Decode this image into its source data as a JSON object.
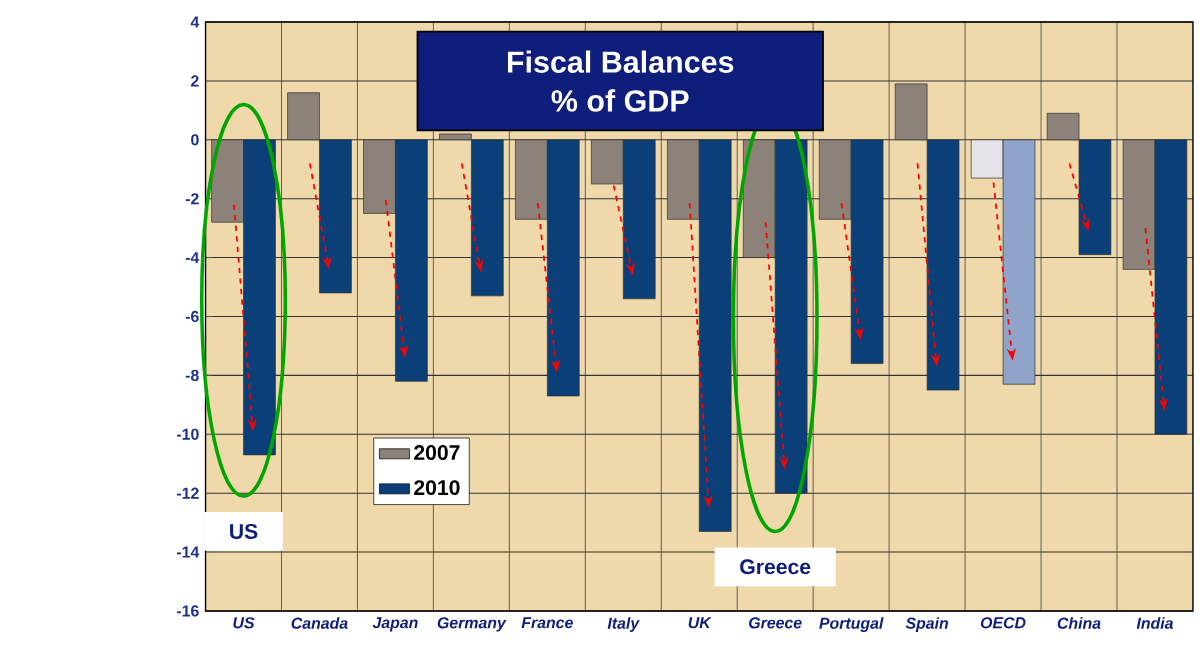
{
  "chart_data": {
    "type": "bar",
    "title": "Fiscal Balances",
    "subtitle": "% of GDP",
    "categories": [
      "US",
      "Canada",
      "Japan",
      "Germany",
      "France",
      "Italy",
      "UK",
      "Greece",
      "Portugal",
      "Spain",
      "OECD",
      "China",
      "India"
    ],
    "series": [
      {
        "name": "2007",
        "colors": [
          "#8c8279",
          "#8c8279",
          "#8c8279",
          "#8c8279",
          "#8c8279",
          "#8c8279",
          "#8c8279",
          "#8c8279",
          "#8c8279",
          "#8c8279",
          "#e4e4e8",
          "#8c8279",
          "#8c8279"
        ],
        "values": [
          -2.8,
          1.6,
          -2.5,
          0.2,
          -2.7,
          -1.5,
          -2.7,
          -4.0,
          -2.7,
          1.9,
          -1.3,
          0.9,
          -4.4
        ]
      },
      {
        "name": "2010",
        "colors": [
          "#0b3f78",
          "#0b3f78",
          "#0b3f78",
          "#0b3f78",
          "#0b3f78",
          "#0b3f78",
          "#0b3f78",
          "#0b3f78",
          "#0b3f78",
          "#0b3f78",
          "#8fa4c8",
          "#0b3f78",
          "#0b3f78"
        ],
        "values": [
          -10.7,
          -5.2,
          -8.2,
          -5.3,
          -8.7,
          -5.4,
          -13.3,
          -12.0,
          -7.6,
          -8.5,
          -8.3,
          -3.9,
          -10.0
        ]
      }
    ],
    "ylim": [
      -16,
      4
    ],
    "yticks": [
      -16,
      -14,
      -12,
      -10,
      -8,
      -6,
      -4,
      -2,
      0,
      2,
      4
    ],
    "grid": true,
    "legend": "left",
    "annotations": [
      "US",
      "Greece"
    ]
  }
}
